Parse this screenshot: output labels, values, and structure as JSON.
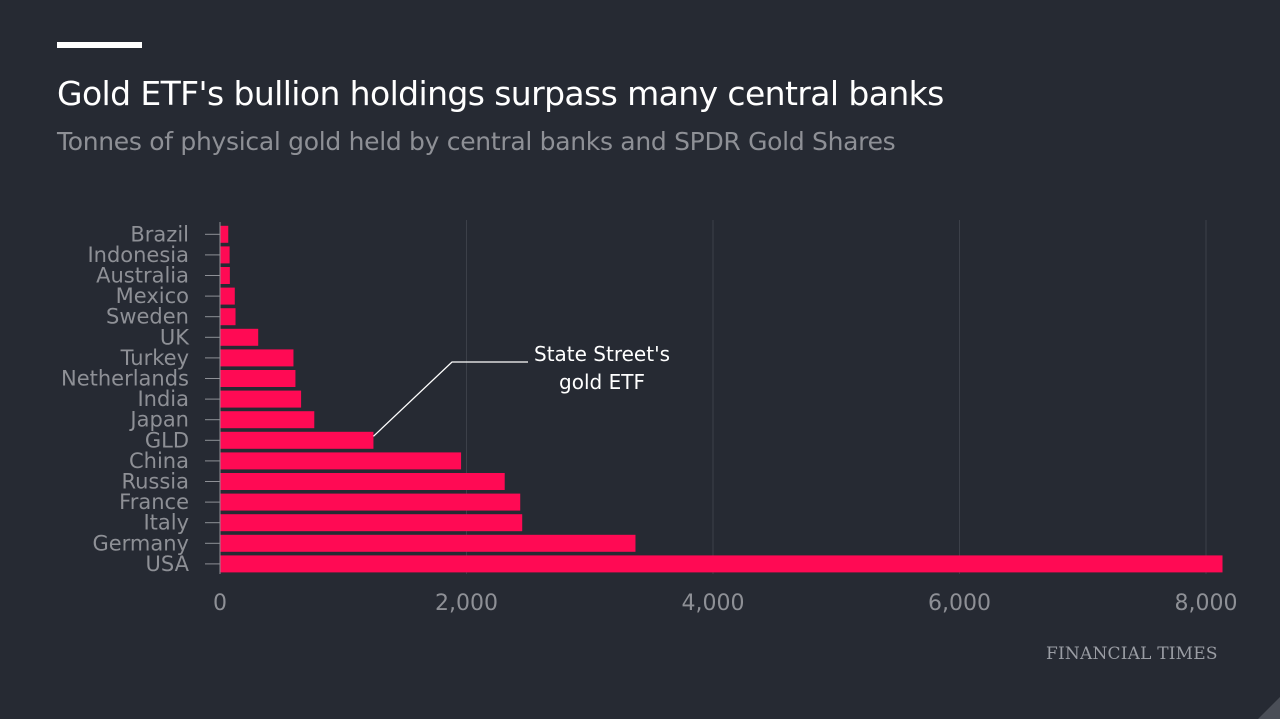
{
  "header": {
    "title": "Gold ETF's bullion holdings surpass many central banks",
    "subtitle": "Tonnes of physical gold held by central banks and SPDR Gold Shares"
  },
  "source": "FINANCIAL TIMES",
  "colors": {
    "background": "#262a33",
    "bar": "#ff0a54",
    "grid": "#3c4049",
    "label": "#8e9096",
    "text": "#ffffff"
  },
  "chart_data": {
    "type": "bar",
    "orientation": "horizontal",
    "title": "Gold ETF's bullion holdings surpass many central banks",
    "subtitle": "Tonnes of physical gold held by central banks and SPDR Gold Shares",
    "categories": [
      "Brazil",
      "Indonesia",
      "Australia",
      "Mexico",
      "Sweden",
      "UK",
      "Turkey",
      "Netherlands",
      "India",
      "Japan",
      "GLD",
      "China",
      "Russia",
      "France",
      "Italy",
      "Germany",
      "USA"
    ],
    "values": [
      67,
      78,
      80,
      120,
      126,
      310,
      596,
      612,
      658,
      765,
      1245,
      1956,
      2310,
      2436,
      2452,
      3371,
      8134
    ],
    "xlim": [
      0,
      8150
    ],
    "xticks": [
      0,
      2000,
      4000,
      6000,
      8000
    ],
    "xtick_labels": [
      "0",
      "2,000",
      "4,000",
      "6,000",
      "8,000"
    ],
    "grid": "vertical",
    "annotation": {
      "target": "GLD",
      "lines": [
        "State Street's",
        "gold ETF"
      ]
    }
  }
}
